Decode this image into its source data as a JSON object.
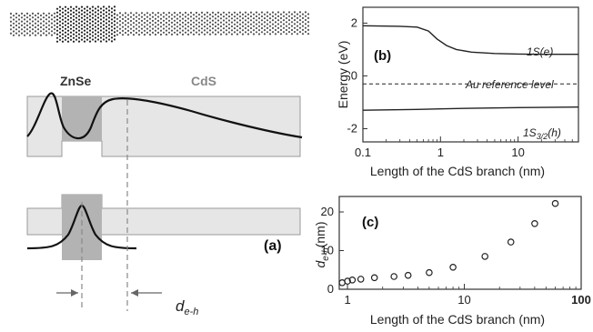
{
  "panel_a": {
    "label": "(a)",
    "zone_left": "ZnSe",
    "zone_right": "CdS",
    "distance_symbol": "d",
    "distance_subscript": "e-h"
  },
  "chart_data": [
    {
      "panel": "(b)",
      "type": "line",
      "xlabel": "Length of the CdS branch (nm)",
      "ylabel": "Energy (eV)",
      "xscale": "log",
      "xlim": [
        0.1,
        60
      ],
      "ylim": [
        -2.5,
        2.6
      ],
      "x_ticks": [
        "0.1",
        "1",
        "10"
      ],
      "y_ticks": [
        "2",
        "0",
        "-2"
      ],
      "series": [
        {
          "name": "1S(e)",
          "x": [
            0.1,
            0.3,
            0.5,
            0.7,
            0.9,
            1.2,
            1.6,
            2.5,
            5,
            10,
            20,
            60
          ],
          "y": [
            1.9,
            1.88,
            1.85,
            1.7,
            1.4,
            1.15,
            1.0,
            0.9,
            0.85,
            0.83,
            0.82,
            0.82
          ]
        },
        {
          "name": "1S3/2(h)",
          "x": [
            0.1,
            0.5,
            1,
            3,
            10,
            60
          ],
          "y": [
            -1.3,
            -1.27,
            -1.25,
            -1.22,
            -1.2,
            -1.18
          ]
        },
        {
          "name": "Au reference level",
          "x": [
            0.1,
            60
          ],
          "y": [
            -0.3,
            -0.3
          ]
        }
      ],
      "annotations": {
        "e_label": "1S(e)",
        "h_label_main": "1S",
        "h_label_sub": "3/2",
        "h_label_tail": "(h)",
        "au_label": "Au reference level"
      }
    },
    {
      "panel": "(c)",
      "type": "scatter",
      "xlabel": "Length of the CdS branch (nm)",
      "ylabel_symbol": "d",
      "ylabel_sub": "e-h",
      "ylabel_unit": "(nm)",
      "xscale": "log",
      "xlim": [
        0.85,
        100
      ],
      "ylim": [
        0,
        24
      ],
      "x_ticks": [
        "1",
        "10",
        "100"
      ],
      "y_ticks": [
        "0",
        "10",
        "20"
      ],
      "x": [
        0.9,
        1.0,
        1.1,
        1.3,
        1.7,
        2.5,
        3.3,
        5,
        8,
        15,
        25,
        40,
        60
      ],
      "y": [
        1.7,
        2.1,
        2.4,
        2.6,
        3.0,
        3.3,
        3.6,
        4.3,
        5.7,
        8.5,
        12.2,
        17.0,
        22.2
      ]
    }
  ]
}
